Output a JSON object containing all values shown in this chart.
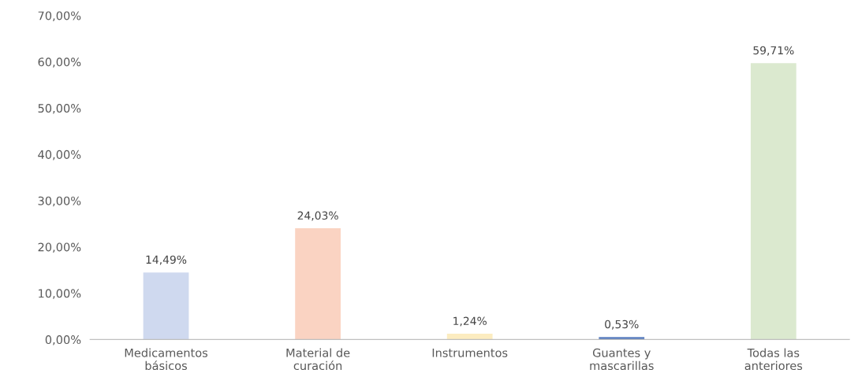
{
  "chart_data": {
    "type": "bar",
    "categories": [
      "Medicamentos\nbásicos",
      "Material de\ncuración",
      "Instrumentos",
      "Guantes y\nmascarillas",
      "Todas las\nanteriores"
    ],
    "values": [
      14.49,
      24.03,
      1.24,
      0.53,
      59.71
    ],
    "colors": [
      "#cfd9ef",
      "#fad3c2",
      "#fcecc0",
      "#5b7fc0",
      "#dbe9cf"
    ],
    "value_labels": [
      "14,49%",
      "24,03%",
      "1,24%",
      "0,53%",
      "59,71%"
    ],
    "ylim": [
      0,
      70
    ],
    "yticks": [
      {
        "value": 0,
        "label": "0,00%"
      },
      {
        "value": 10,
        "label": "10,00%"
      },
      {
        "value": 20,
        "label": "20,00%"
      },
      {
        "value": 30,
        "label": "30,00%"
      },
      {
        "value": 40,
        "label": "40,00%"
      },
      {
        "value": 50,
        "label": "50,00%"
      },
      {
        "value": 60,
        "label": "60,00%"
      },
      {
        "value": 70,
        "label": "70,00%"
      }
    ],
    "grid": false,
    "legend": false
  }
}
